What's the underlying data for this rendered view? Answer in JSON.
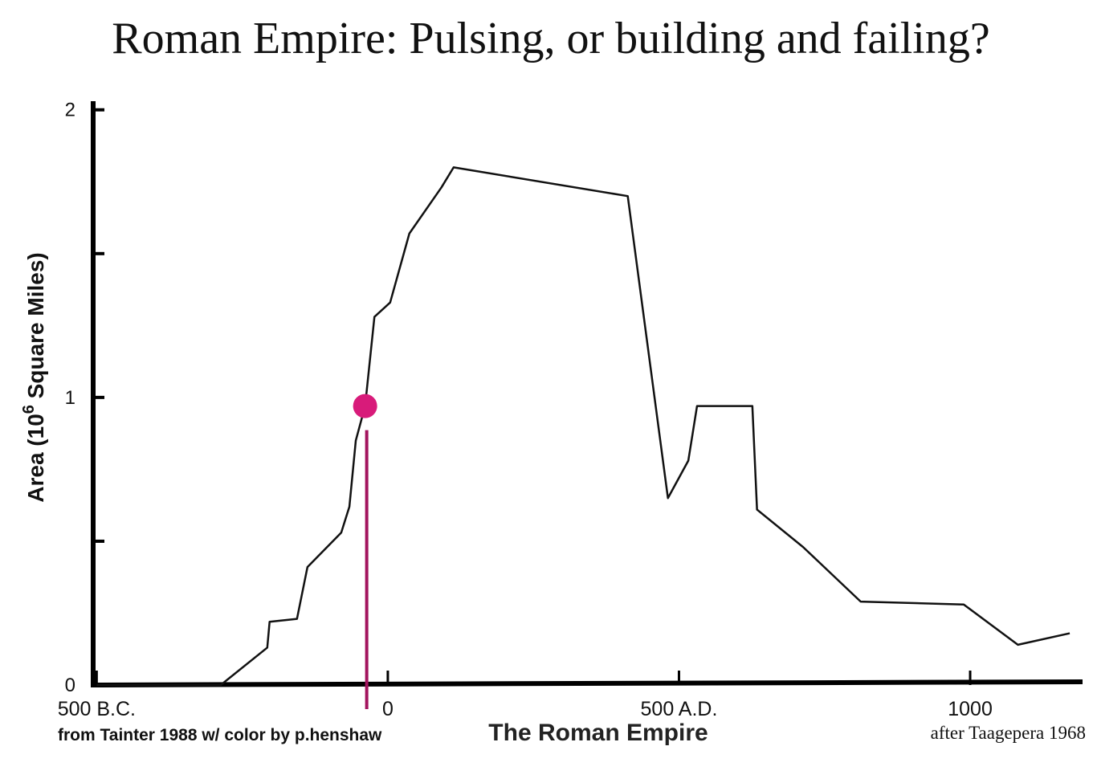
{
  "chart_data": {
    "type": "line",
    "title": "Roman Empire: Pulsing, or building and failing?",
    "ylabel": "Area   (10",
    "ylabel_sup": "6",
    "ylabel_end": " Square Miles)",
    "xlabel": "The Roman Empire",
    "source_left": "from Tainter 1988 w/ color by p.henshaw",
    "source_right": "after Taagepera 1968",
    "x": [
      -500,
      -287,
      -207,
      -203,
      -156,
      -138,
      -80,
      -66,
      -55,
      -39,
      -23,
      4,
      37,
      92,
      113,
      412,
      481,
      516,
      531,
      626,
      634,
      713,
      812,
      989,
      1082,
      1171
    ],
    "series": [
      {
        "color": "#111111",
        "values": [
          0,
          0,
          0.13,
          0.22,
          0.23,
          0.41,
          0.53,
          0.62,
          0.85,
          0.97,
          1.28,
          1.33,
          1.57,
          1.73,
          1.8,
          1.7,
          0.65,
          0.78,
          0.97,
          0.97,
          0.61,
          0.48,
          0.29,
          0.28,
          0.14,
          0.18
        ]
      }
    ],
    "highlight": {
      "x": -39,
      "y": 0.97,
      "color": "#d81b7a",
      "line_color": "#a3145e"
    },
    "xlim": [
      -506,
      1193
    ],
    "ylim": [
      0,
      2.03
    ],
    "xticks": [
      {
        "value": -500,
        "label": "500 B.C."
      },
      0,
      {
        "value": 500,
        "label": "500 A.D."
      },
      1000
    ],
    "yticks": [
      0,
      1,
      2
    ],
    "minor_yticks": [
      0.5,
      1.5
    ]
  }
}
